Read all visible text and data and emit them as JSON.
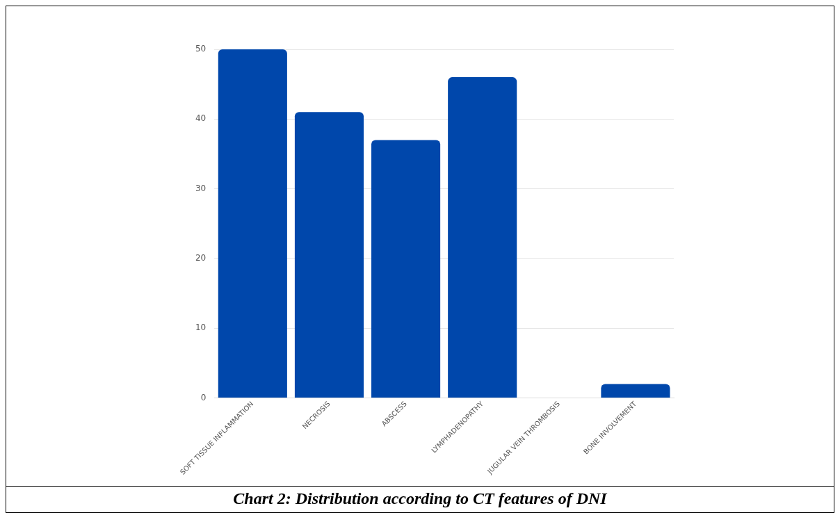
{
  "chart_data": {
    "type": "bar",
    "title": "Chart 2: Distribution according to CT features of DNI",
    "categories": [
      "SOFT TISSUE INFLAMMATION",
      "NECROSIS",
      "ABSCESS",
      "LYMPHADENOPATHY",
      "JUGULAR VEIN THROMBOSIS",
      "BONE INVOLVEMENT"
    ],
    "values": [
      50,
      41,
      37,
      46,
      0,
      2
    ],
    "color": "#0047ab",
    "ylim": [
      0,
      50
    ],
    "yticks": [
      0,
      10,
      20,
      30,
      40,
      50
    ],
    "grid": "y"
  }
}
